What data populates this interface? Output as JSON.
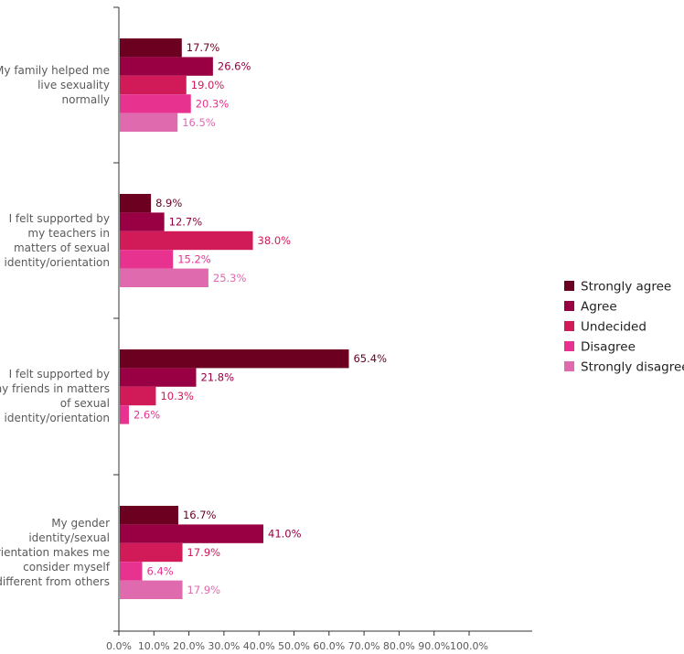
{
  "chart_data": {
    "type": "bar",
    "orientation": "horizontal",
    "categories": [
      [
        "My family helped me",
        "live sexuality",
        "normally"
      ],
      [
        "I felt supported by",
        "my teachers in",
        "matters of sexual",
        "identity/orientation"
      ],
      [
        "I felt supported by",
        "my friends in matters",
        "of sexual",
        "identity/orientation"
      ],
      [
        "My gender",
        "identity/sexual",
        "orientation makes me",
        "consider myself",
        "different from others"
      ]
    ],
    "series": [
      {
        "name": "Strongly agree",
        "color": "#6b0021",
        "values": [
          17.7,
          8.9,
          65.4,
          16.7
        ],
        "labels": [
          "17.7%",
          "8.9%",
          "65.4%",
          "16.7%"
        ]
      },
      {
        "name": "Agree",
        "color": "#990044",
        "values": [
          26.6,
          12.7,
          21.8,
          41.0
        ],
        "labels": [
          "26.6%",
          "12.7%",
          "21.8%",
          "41.0%"
        ]
      },
      {
        "name": "Undecided",
        "color": "#d11a58",
        "values": [
          19.0,
          38.0,
          10.3,
          17.9
        ],
        "labels": [
          "19.0%",
          "38.0%",
          "10.3%",
          "17.9%"
        ]
      },
      {
        "name": "Disagree",
        "color": "#e8328f",
        "values": [
          20.3,
          15.2,
          2.6,
          6.4
        ],
        "labels": [
          "20.3%",
          "15.2%",
          "2.6%",
          "6.4%"
        ]
      },
      {
        "name": "Strongly disagree",
        "color": "#df6aad",
        "values": [
          16.5,
          25.3,
          null,
          17.9
        ],
        "labels": [
          "16.5%",
          "25.3%",
          "",
          "17.9%"
        ]
      }
    ],
    "xlim": [
      0,
      100
    ],
    "xticks": [
      "0.0%",
      "10.0%",
      "20.0%",
      "30.0%",
      "40.0%",
      "50.0%",
      "60.0%",
      "70.0%",
      "80.0%",
      "90.0%",
      "100.0%"
    ],
    "legend_position": "right",
    "grid": false
  }
}
